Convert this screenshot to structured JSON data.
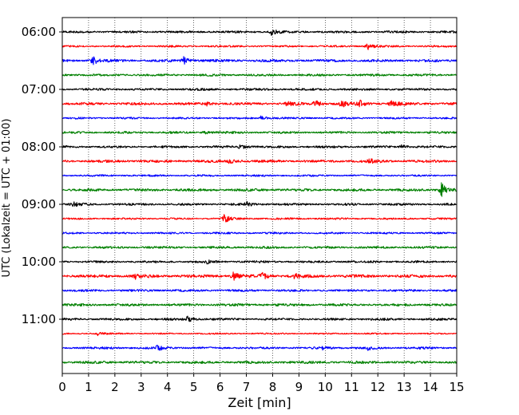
{
  "chart_data": {
    "type": "line",
    "xlabel": "Zeit  [min]",
    "ylabel": "UTC (Lokalzeit = UTC + 01:00)",
    "xlim": [
      0,
      15
    ],
    "x_ticks": [
      "0",
      "1",
      "2",
      "3",
      "4",
      "5",
      "6",
      "7",
      "8",
      "9",
      "10",
      "11",
      "12",
      "13",
      "14",
      "15"
    ],
    "y_tick_labels": [
      "06:00",
      "07:00",
      "08:00",
      "09:00",
      "10:00",
      "11:00"
    ],
    "y_tick_rows": [
      0,
      4,
      8,
      12,
      16,
      20
    ],
    "grid": "vertical dotted at each minute",
    "trace_colors": [
      "#000000",
      "#ff0000",
      "#0000ff",
      "#008000"
    ],
    "trace_interval_min": 15,
    "series": [
      {
        "start": "06:00",
        "noise": 0.6,
        "events": [
          {
            "t": 7.95,
            "a": 2.2
          }
        ]
      },
      {
        "start": "06:15",
        "noise": 0.5,
        "events": [
          {
            "t": 11.6,
            "a": 2.6
          }
        ]
      },
      {
        "start": "06:30",
        "noise": 0.7,
        "events": [
          {
            "t": 1.15,
            "a": 3.2
          },
          {
            "t": 4.6,
            "a": 2.8
          }
        ]
      },
      {
        "start": "06:45",
        "noise": 0.6,
        "events": []
      },
      {
        "start": "07:00",
        "noise": 0.6,
        "events": []
      },
      {
        "start": "07:15",
        "noise": 0.7,
        "events": [
          {
            "t": 5.5,
            "a": 1.2
          },
          {
            "t": 8.5,
            "a": 1.8
          },
          {
            "t": 9.6,
            "a": 3.0
          },
          {
            "t": 10.6,
            "a": 2.6
          },
          {
            "t": 11.3,
            "a": 2.5
          },
          {
            "t": 12.5,
            "a": 3.2
          }
        ]
      },
      {
        "start": "07:30",
        "noise": 0.5,
        "events": [
          {
            "t": 7.55,
            "a": 1.6
          }
        ]
      },
      {
        "start": "07:45",
        "noise": 0.6,
        "events": [
          {
            "t": 5.4,
            "a": 1.0
          }
        ]
      },
      {
        "start": "08:00",
        "noise": 0.6,
        "events": [
          {
            "t": 6.75,
            "a": 2.0
          },
          {
            "t": 12.9,
            "a": 1.4
          }
        ]
      },
      {
        "start": "08:15",
        "noise": 0.7,
        "events": [
          {
            "t": 6.3,
            "a": 2.0
          },
          {
            "t": 11.7,
            "a": 1.8
          }
        ]
      },
      {
        "start": "08:30",
        "noise": 0.5,
        "events": []
      },
      {
        "start": "08:45",
        "noise": 0.7,
        "events": [
          {
            "t": 14.4,
            "a": 5.5
          }
        ]
      },
      {
        "start": "09:00",
        "noise": 0.6,
        "events": [
          {
            "t": 0.4,
            "a": 1.6
          },
          {
            "t": 7.0,
            "a": 1.6
          }
        ]
      },
      {
        "start": "09:15",
        "noise": 0.5,
        "events": [
          {
            "t": 6.15,
            "a": 3.0
          }
        ]
      },
      {
        "start": "09:30",
        "noise": 0.5,
        "events": []
      },
      {
        "start": "09:45",
        "noise": 0.6,
        "events": []
      },
      {
        "start": "10:00",
        "noise": 0.6,
        "events": [
          {
            "t": 5.5,
            "a": 1.2
          }
        ]
      },
      {
        "start": "10:15",
        "noise": 0.8,
        "events": [
          {
            "t": 2.8,
            "a": 2.2
          },
          {
            "t": 6.5,
            "a": 3.0
          },
          {
            "t": 7.6,
            "a": 2.4
          },
          {
            "t": 8.8,
            "a": 2.0
          }
        ]
      },
      {
        "start": "10:30",
        "noise": 0.6,
        "events": []
      },
      {
        "start": "10:45",
        "noise": 0.7,
        "events": []
      },
      {
        "start": "11:00",
        "noise": 0.6,
        "events": [
          {
            "t": 4.75,
            "a": 2.2
          }
        ]
      },
      {
        "start": "11:15",
        "noise": 0.4,
        "events": [
          {
            "t": 1.35,
            "a": 1.2
          }
        ]
      },
      {
        "start": "11:30",
        "noise": 0.6,
        "events": [
          {
            "t": 3.6,
            "a": 2.0
          },
          {
            "t": 9.9,
            "a": 1.2
          },
          {
            "t": 11.6,
            "a": 1.2
          }
        ]
      },
      {
        "start": "11:45",
        "noise": 0.7,
        "events": []
      }
    ]
  }
}
